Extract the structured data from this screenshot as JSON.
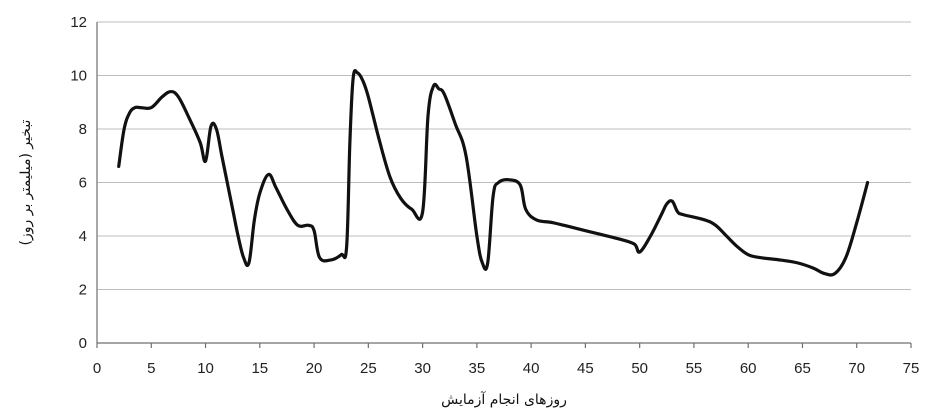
{
  "chart_data": {
    "type": "line",
    "title": "",
    "xlabel": "روزهای انجام آزمایش",
    "ylabel": "تبخیر (میلیمتر بر روز)",
    "xlim": [
      0,
      75
    ],
    "ylim": [
      0,
      12
    ],
    "xticks": [
      0,
      5,
      10,
      15,
      20,
      25,
      30,
      35,
      40,
      45,
      50,
      55,
      60,
      65,
      70,
      75
    ],
    "yticks": [
      0,
      2,
      4,
      6,
      8,
      10,
      12
    ],
    "grid": "horizontal",
    "legend": "none",
    "line_color": "#111111",
    "series": [
      {
        "x": [
          2,
          2.5,
          3,
          3.5,
          4,
          5,
          6,
          6.8,
          7.5,
          8.5,
          9.5,
          10,
          10.5,
          11,
          11.5,
          12,
          12.5,
          13,
          13.5,
          14,
          14.5,
          15,
          15.8,
          16.5,
          17.5,
          18.5,
          19.5,
          20,
          20.5,
          21.5,
          22.5,
          23,
          23.3,
          23.6,
          24,
          24.5,
          25,
          26,
          27,
          28,
          29,
          30,
          30.5,
          31,
          31.5,
          32,
          33,
          34,
          35,
          35.5,
          36,
          36.5,
          37,
          38,
          39,
          39.5,
          40.5,
          42,
          44,
          46,
          48,
          49.5,
          50,
          51,
          52,
          52.5,
          53,
          53.5,
          54,
          56,
          57,
          58,
          59,
          60,
          61,
          63,
          64.5,
          66,
          67,
          68,
          69,
          70,
          71
        ],
        "values": [
          6.6,
          8.0,
          8.6,
          8.8,
          8.8,
          8.8,
          9.2,
          9.4,
          9.2,
          8.4,
          7.5,
          6.8,
          8.1,
          8.0,
          7.0,
          6.0,
          5.0,
          4.0,
          3.2,
          3.0,
          4.6,
          5.6,
          6.3,
          5.8,
          5.0,
          4.4,
          4.4,
          4.2,
          3.2,
          3.1,
          3.3,
          3.6,
          7.5,
          9.9,
          10.1,
          9.8,
          9.2,
          7.6,
          6.2,
          5.4,
          5.0,
          4.9,
          8.5,
          9.6,
          9.5,
          9.3,
          8.2,
          7.0,
          4.0,
          3.0,
          3.0,
          5.5,
          6.0,
          6.1,
          5.9,
          5.0,
          4.6,
          4.5,
          4.3,
          4.1,
          3.9,
          3.7,
          3.4,
          4.0,
          4.8,
          5.2,
          5.3,
          4.9,
          4.8,
          4.6,
          4.4,
          4.0,
          3.6,
          3.3,
          3.2,
          3.1,
          3.0,
          2.8,
          2.6,
          2.6,
          3.2,
          4.5,
          6.0
        ]
      }
    ]
  }
}
